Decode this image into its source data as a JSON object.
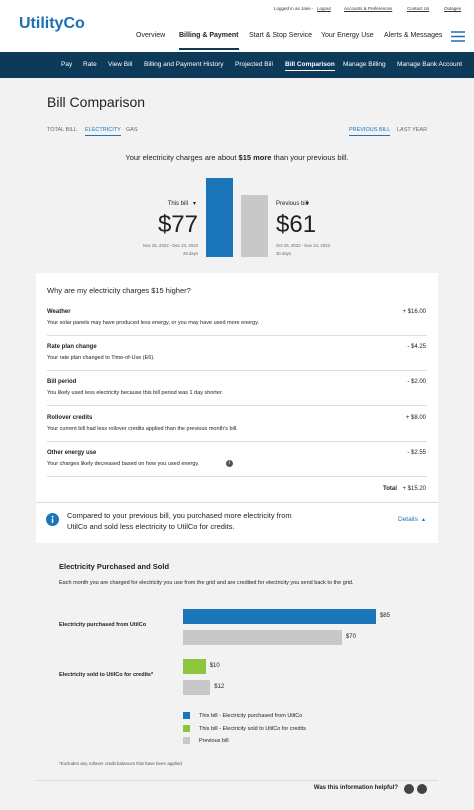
{
  "header": {
    "logo": "UtilityCo",
    "top_links": [
      "Logged in as Jane -",
      "Logout",
      "Accounts & Preferences",
      "Contact Us",
      "Outages"
    ],
    "nav": [
      "Overview",
      "Billing & Payment",
      "Start & Stop Service",
      "Your Energy Use",
      "Alerts & Messages"
    ],
    "subnav": [
      "Pay",
      "Rate",
      "View Bill",
      "Billing and Payment History",
      "Projected Bill",
      "Bill Comparison",
      "Manage Billing",
      "Manage Bank Account"
    ]
  },
  "page": {
    "title": "Bill Comparison",
    "tabs": [
      "TOTAL BILL",
      "ELECTRICITY",
      "GAS"
    ],
    "period_tabs": [
      "PREVIOUS BILL",
      "LAST YEAR"
    ],
    "summary": [
      "Your electricity charges are about",
      "$15 more",
      "than your previous bill."
    ]
  },
  "comparison": [
    {
      "label": "This bill",
      "value": 77,
      "value_label": "$77",
      "dates": "Nov 25, 2022 - Dec 24, 2022",
      "days": "29 days",
      "color": "#1b75b9"
    },
    {
      "label": "Previous bill",
      "value": 61,
      "value_label": "$61",
      "dates": "Oct 25, 2022 - Nov 24, 2022",
      "days": "30 days",
      "color": "#c8c8c8"
    }
  ],
  "breakdown": {
    "question": "Why are my electricity charges $15 higher?",
    "items": [
      {
        "title": "Weather",
        "description": "Your solar panels may have produced less energy, or you may have used more energy.",
        "amount": "+ $16.00"
      },
      {
        "title": "Rate plan change",
        "description": "Your rate plan changed to Time-of-Use (E6).",
        "amount": "- $4.25"
      },
      {
        "title": "Bill period",
        "description": "You likely used less electricity because this bill period was 1 day shorter.",
        "amount": "- $2.00"
      },
      {
        "title": "Rollover credits",
        "description": "Your current bill had less rollover credits applied than the previous month's bill.",
        "amount": "+ $8.00"
      },
      {
        "title": "Other energy use",
        "description": "Your charges likely decreased based on how you used energy.",
        "amount": "- $2.55"
      }
    ],
    "total_label": "Total",
    "total": "+ $15.20",
    "info": [
      "Compared to your previous bill, you purchased more electricity from",
      "UtilCo and sold less electricity to UtilCo for credits."
    ],
    "details": "Details"
  },
  "purchased": {
    "title": "Electricity Purchased and Sold",
    "description": "Each month you are charged for electricity you use from the grid and are credited for electricity you send back to the grid.",
    "rows": [
      {
        "label": "Electricity purchased from UtilCo",
        "bars": [
          {
            "value": 85,
            "label": "$85",
            "color": "#1b75b9"
          },
          {
            "value": 70,
            "label": "$70",
            "color": "#c8c8c8"
          }
        ]
      },
      {
        "label": "Electricity sold to UtilCo for credits*",
        "bars": [
          {
            "value": 10,
            "label": "$10",
            "color": "#8cc63f"
          },
          {
            "value": 12,
            "label": "$12",
            "color": "#c8c8c8"
          }
        ]
      }
    ],
    "legend": [
      {
        "name": "This bill - Electricity purchased from UtilCo",
        "color": "#1b75b9"
      },
      {
        "name": "This bill - Electricity sold to UtilCo for credits",
        "color": "#8cc63f"
      },
      {
        "name": "Previous bill",
        "color": "#c8c8c8"
      }
    ],
    "footnote": "*Excludes any rollover credit balances that have been applied",
    "feedback": "Was this information helpful?"
  }
}
